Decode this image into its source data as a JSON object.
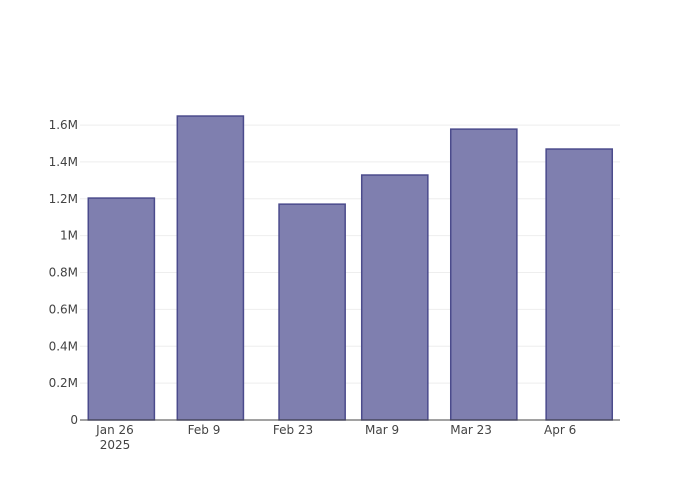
{
  "chart_data": {
    "type": "bar",
    "x": [
      "2025-01-27",
      "2025-02-10",
      "2025-02-26",
      "2025-03-11",
      "2025-03-25",
      "2025-04-09"
    ],
    "values": [
      1204000,
      1649000,
      1171000,
      1329000,
      1578000,
      1470000
    ],
    "color": "#7f7faf",
    "line_color": "#4b4b8c",
    "xlim": [
      "2025-01-20T12:00Z",
      "2025-04-15T10:00Z"
    ],
    "xticks": [
      {
        "value": "2025-01-26",
        "label": "Jan 26\n2025"
      },
      {
        "value": "2025-02-09",
        "label": "Feb 9"
      },
      {
        "value": "2025-02-23",
        "label": "Feb 23"
      },
      {
        "value": "2025-03-09",
        "label": "Mar 9"
      },
      {
        "value": "2025-03-23",
        "label": "Mar 23"
      },
      {
        "value": "2025-04-06",
        "label": "Apr 6"
      }
    ],
    "ylim": [
      0,
      1736000
    ],
    "yticks": [
      0,
      {
        "value": 200000,
        "label": "0.2M"
      },
      {
        "value": 400000,
        "label": "0.4M"
      },
      {
        "value": 600000,
        "label": "0.6M"
      },
      {
        "value": 800000,
        "label": "0.8M"
      },
      {
        "value": 1000000,
        "label": "1M"
      },
      {
        "value": 1200000,
        "label": "1.2M"
      },
      {
        "value": 1400000,
        "label": "1.4M"
      },
      {
        "value": 1600000,
        "label": "1.6M"
      }
    ],
    "grid": true
  }
}
